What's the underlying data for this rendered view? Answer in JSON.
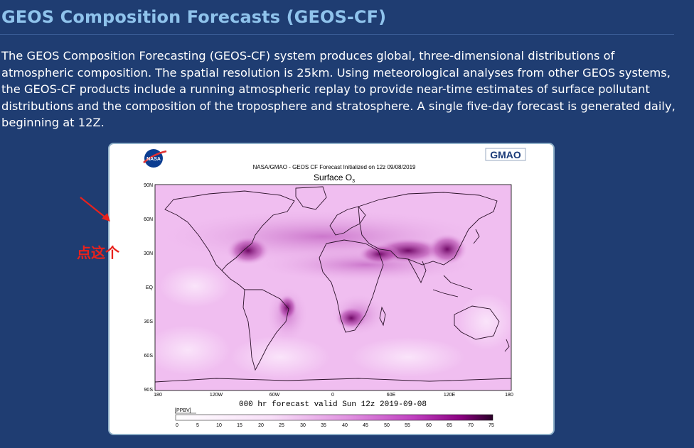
{
  "page": {
    "title": "GEOS Composition Forecasts (GEOS-CF)",
    "description": "The GEOS Composition Forecasting (GEOS-CF) system produces global, three-dimensional distributions of atmospheric composition. The spatial resolution is 25km. Using meteorological analyses from other GEOS systems, the GEOS-CF products include a running atmospheric replay to provide near-time estimates of surface pollutant distributions and the composition of the troposphere and stratosphere. A single five-day forecast is generated daily, beginning at 12Z."
  },
  "annotation": {
    "label": "点这个",
    "color": "#e8221c"
  },
  "figure": {
    "logo_left": "NASA",
    "logo_right": "GMAO",
    "header": "NASA/GMAO - GEOS CF Forecast Initialized on 12z 09/08/2019",
    "subtitle": "Surface O",
    "subtitle_sub": "3",
    "lat_ticks": [
      "90N",
      "60N",
      "30N",
      "EQ",
      "30S",
      "60S",
      "90S"
    ],
    "lon_ticks": [
      "180",
      "120W",
      "60W",
      "0",
      "60E",
      "120E",
      "180"
    ],
    "footer": "000 hr forecast valid Sun 12z 2019-09-08",
    "unit": "[PPBV]",
    "colorbar_ticks": [
      "0",
      "5",
      "10",
      "15",
      "20",
      "25",
      "30",
      "35",
      "40",
      "45",
      "50",
      "55",
      "60",
      "65",
      "70",
      "75"
    ],
    "colors": {
      "map_bg": "#f0bef0",
      "low": "#f7d9f7",
      "high": "#6a0060",
      "coast": "#2a1028"
    }
  }
}
